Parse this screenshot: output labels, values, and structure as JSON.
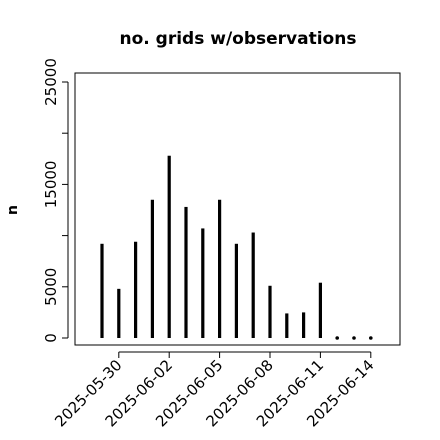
{
  "chart_data": {
    "type": "bar",
    "title": "no. grids w/observations",
    "xlabel": "",
    "ylabel": "n",
    "ylim": [
      0,
      25000
    ],
    "yticks": [
      0,
      5000,
      15000,
      25000
    ],
    "categories": [
      "2025-05-29",
      "2025-05-30",
      "2025-05-31",
      "2025-06-01",
      "2025-06-02",
      "2025-06-03",
      "2025-06-04",
      "2025-06-05",
      "2025-06-06",
      "2025-06-07",
      "2025-06-08",
      "2025-06-09",
      "2025-06-10",
      "2025-06-11",
      "2025-06-12",
      "2025-06-13",
      "2025-06-14"
    ],
    "values": [
      9200,
      4800,
      9400,
      13500,
      17800,
      12800,
      10700,
      13500,
      9200,
      10300,
      5100,
      2400,
      2500,
      5400,
      0,
      0,
      0
    ],
    "xtick_labels": [
      "2025-05-30",
      "2025-06-02",
      "2025-06-05",
      "2025-06-08",
      "2025-06-11",
      "2025-06-14"
    ],
    "xtick_colors": [
      "#000000",
      "#000000",
      "#228B22",
      "#000000",
      "#000000",
      "#000000"
    ],
    "bar_color": "#000000",
    "grid": false,
    "legend": "none"
  }
}
